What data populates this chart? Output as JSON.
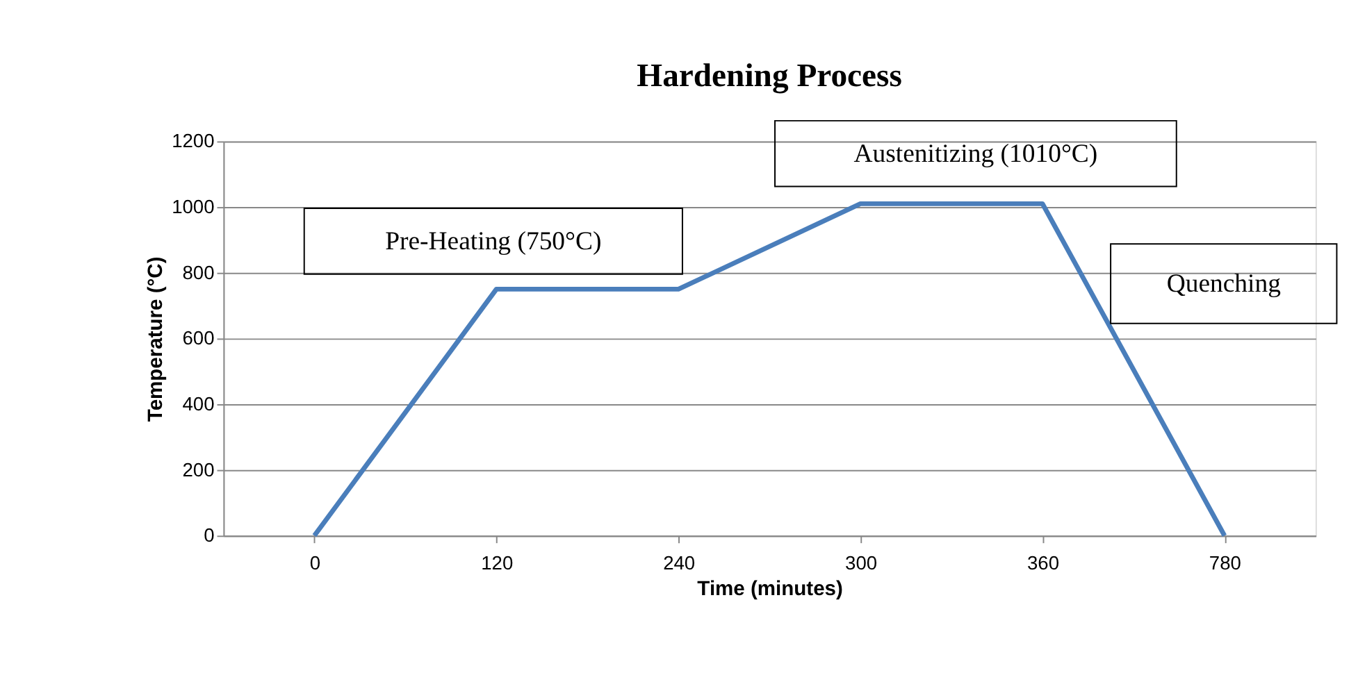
{
  "chart_data": {
    "type": "line",
    "title": "Hardening Process",
    "xlabel": "Time (minutes)",
    "ylabel": "Temperature (°C)",
    "categories": [
      "0",
      "120",
      "240",
      "300",
      "360",
      "780"
    ],
    "series": [
      {
        "color": "#4a7ebb",
        "values": [
          0,
          750,
          750,
          1010,
          1010,
          0
        ]
      }
    ],
    "ylim": [
      0,
      1200
    ],
    "yticks": [
      0,
      200,
      400,
      600,
      800,
      1000,
      1200
    ],
    "grid": "y",
    "marker": "none",
    "line_style": "solid",
    "annotations": [
      "Pre-Heating (750°C)",
      "Austenitizing (1010°C)",
      "Quenching"
    ]
  }
}
